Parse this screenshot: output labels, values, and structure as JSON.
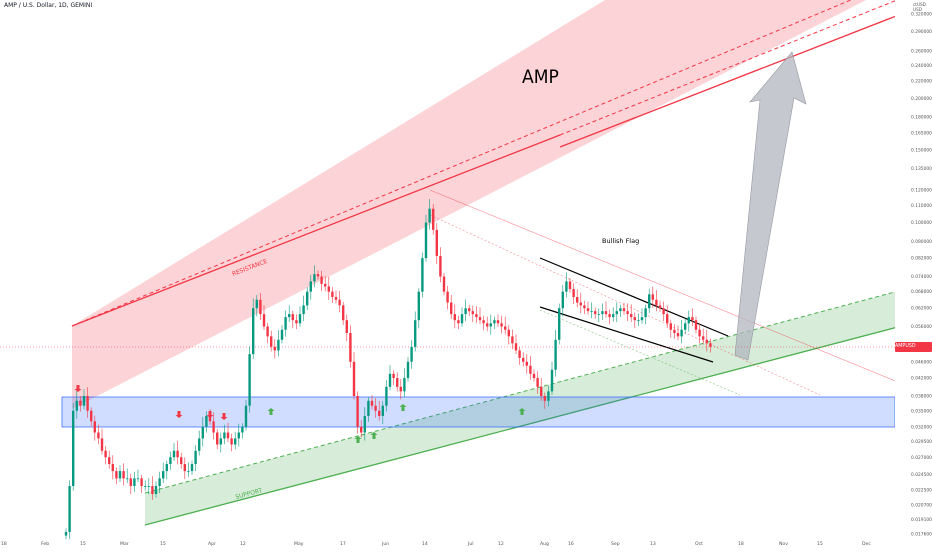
{
  "header": {
    "symbol_line": "AMP / U.S. Dollar, 1D, GEMINI"
  },
  "annotations": {
    "title": "AMP",
    "bullish_flag": "Bullish Flag",
    "resistance": "RESISTANCE",
    "support": "SUPPORT"
  },
  "price_axis": {
    "unit_label_1": "ctUSD",
    "unit_label_2": "USD",
    "current_price_label": "AMPUSD",
    "current_price": "0.050090"
  },
  "colors": {
    "up": "#089981",
    "down": "#f23645",
    "resistance": "#f23645",
    "support": "#4caf50",
    "zone": "#2962ff"
  },
  "chart_data": {
    "type": "candlestick",
    "title": "AMP",
    "symbol": "AMP / U.S. Dollar, 1D, GEMINI",
    "y_scale": "log",
    "y_ticks": [
      "0.320000",
      "0.290000",
      "0.260000",
      "0.240000",
      "0.220000",
      "0.200000",
      "0.180000",
      "0.165000",
      "0.150000",
      "0.135000",
      "0.120000",
      "0.110000",
      "0.100000",
      "0.090000",
      "0.082000",
      "0.074000",
      "0.068000",
      "0.062000",
      "0.056000",
      "0.050000",
      "0.046000",
      "0.042000",
      "0.038000",
      "0.035000",
      "0.032000",
      "0.029500",
      "0.027000",
      "0.024500",
      "0.022500",
      "0.020700",
      "0.019100",
      "0.017600"
    ],
    "x_ticks": [
      "18",
      "Feb",
      "15",
      "Mar",
      "15",
      "Apr",
      "12",
      "May",
      "17",
      "Jun",
      "14",
      "Jul",
      "12",
      "Aug",
      "16",
      "Sep",
      "13",
      "Oct",
      "18",
      "Nov",
      "15",
      "Dec"
    ],
    "last_price": 0.05009,
    "candles_close": [
      0.0178,
      0.023,
      0.035,
      0.037,
      0.036,
      0.038,
      0.035,
      0.033,
      0.031,
      0.03,
      0.028,
      0.027,
      0.026,
      0.025,
      0.024,
      0.025,
      0.024,
      0.024,
      0.023,
      0.024,
      0.024,
      0.023,
      0.023,
      0.023,
      0.022,
      0.023,
      0.024,
      0.025,
      0.026,
      0.027,
      0.028,
      0.027,
      0.026,
      0.025,
      0.025,
      0.026,
      0.028,
      0.03,
      0.032,
      0.034,
      0.033,
      0.031,
      0.029,
      0.03,
      0.031,
      0.03,
      0.029,
      0.03,
      0.031,
      0.032,
      0.036,
      0.048,
      0.062,
      0.065,
      0.06,
      0.056,
      0.053,
      0.05,
      0.049,
      0.052,
      0.055,
      0.059,
      0.06,
      0.058,
      0.057,
      0.06,
      0.063,
      0.068,
      0.072,
      0.075,
      0.074,
      0.071,
      0.07,
      0.068,
      0.066,
      0.065,
      0.063,
      0.058,
      0.054,
      0.046,
      0.038,
      0.032,
      0.031,
      0.034,
      0.037,
      0.036,
      0.035,
      0.034,
      0.036,
      0.04,
      0.043,
      0.042,
      0.04,
      0.039,
      0.042,
      0.046,
      0.05,
      0.058,
      0.068,
      0.082,
      0.1,
      0.108,
      0.096,
      0.083,
      0.074,
      0.068,
      0.064,
      0.06,
      0.058,
      0.057,
      0.06,
      0.062,
      0.061,
      0.06,
      0.059,
      0.058,
      0.057,
      0.056,
      0.057,
      0.058,
      0.057,
      0.056,
      0.055,
      0.053,
      0.051,
      0.049,
      0.047,
      0.046,
      0.045,
      0.043,
      0.042,
      0.04,
      0.038,
      0.037,
      0.039,
      0.044,
      0.052,
      0.062,
      0.068,
      0.072,
      0.069,
      0.066,
      0.064,
      0.063,
      0.062,
      0.061,
      0.061,
      0.06,
      0.06,
      0.061,
      0.06,
      0.059,
      0.06,
      0.061,
      0.062,
      0.061,
      0.06,
      0.059,
      0.058,
      0.058,
      0.059,
      0.062,
      0.067,
      0.065,
      0.063,
      0.062,
      0.06,
      0.057,
      0.055,
      0.054,
      0.053,
      0.055,
      0.057,
      0.059,
      0.058,
      0.055,
      0.053,
      0.052,
      0.051,
      0.05
    ]
  }
}
